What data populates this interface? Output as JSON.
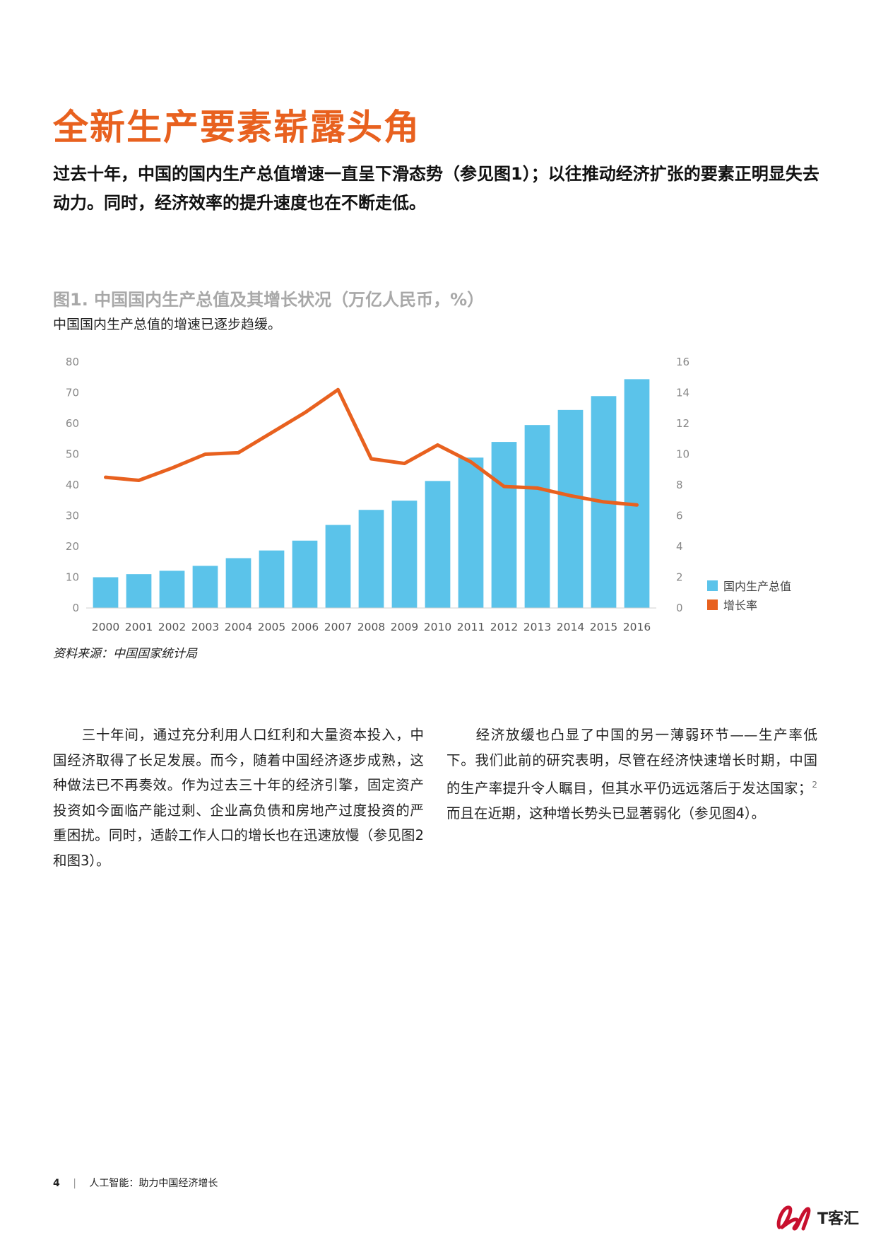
{
  "page": {
    "title": "全新生产要素崭露头角",
    "lead": "过去十年，中国的国内生产总值增速一直呈下滑态势（参见图1）；以往推动经济扩张的要素正明显失去动力。同时，经济效率的提升速度也在不断走低。",
    "figure_title": "图1. 中国国内生产总值及其增长状况（万亿人民币，%）",
    "figure_subtitle": "中国国内生产总值的增速已逐步趋缓。",
    "source": "资料来源：中国国家统计局",
    "body_left": "三十年间，通过充分利用人口红利和大量资本投入，中国经济取得了长足发展。而今，随着中国经济逐步成熟，这种做法已不再奏效。作为过去三十年的经济引擎，固定资产投资如今面临产能过剩、企业高负债和房地产过度投资的严重困扰。同时，适龄工作人口的增长也在迅速放慢（参见图2和图3）。",
    "body_right": "经济放缓也凸显了中国的另一薄弱环节——生产率低下。我们此前的研究表明，尽管在经济快速增长时期，中国的生产率提升令人瞩目，但其水平仍远远落后于发达国家；",
    "body_right_sup": "2",
    "body_right_tail": "而且在近期，这种增长势头已显著弱化（参见图4）。",
    "footer_page": "4",
    "footer_title": "人工智能：助力中国经济增长",
    "logo_text": "T客汇"
  },
  "colors": {
    "accent": "#e8611f",
    "bar": "#5bc3ea",
    "line": "#e8611f"
  },
  "chart_data": {
    "type": "bar",
    "categories": [
      "2000",
      "2001",
      "2002",
      "2003",
      "2004",
      "2005",
      "2006",
      "2007",
      "2008",
      "2009",
      "2010",
      "2011",
      "2012",
      "2013",
      "2014",
      "2015",
      "2016"
    ],
    "series": [
      {
        "name": "国内生产总值",
        "type": "bar",
        "axis": "left",
        "values": [
          10.0,
          11.0,
          12.1,
          13.7,
          16.2,
          18.7,
          21.9,
          27.0,
          31.9,
          34.9,
          41.3,
          48.9,
          54.0,
          59.5,
          64.4,
          68.9,
          74.4
        ]
      },
      {
        "name": "增长率",
        "type": "line",
        "axis": "right",
        "values": [
          8.5,
          8.3,
          9.1,
          10.0,
          10.1,
          11.4,
          12.7,
          14.2,
          9.7,
          9.4,
          10.6,
          9.5,
          7.9,
          7.8,
          7.3,
          6.9,
          6.7
        ]
      }
    ],
    "ylim_left": [
      0,
      80
    ],
    "yticks_left": [
      0,
      10,
      20,
      30,
      40,
      50,
      60,
      70,
      80
    ],
    "ylim_right": [
      0,
      16
    ],
    "yticks_right": [
      0,
      2,
      4,
      6,
      8,
      10,
      12,
      14,
      16
    ],
    "legend": "right",
    "grid": false
  }
}
